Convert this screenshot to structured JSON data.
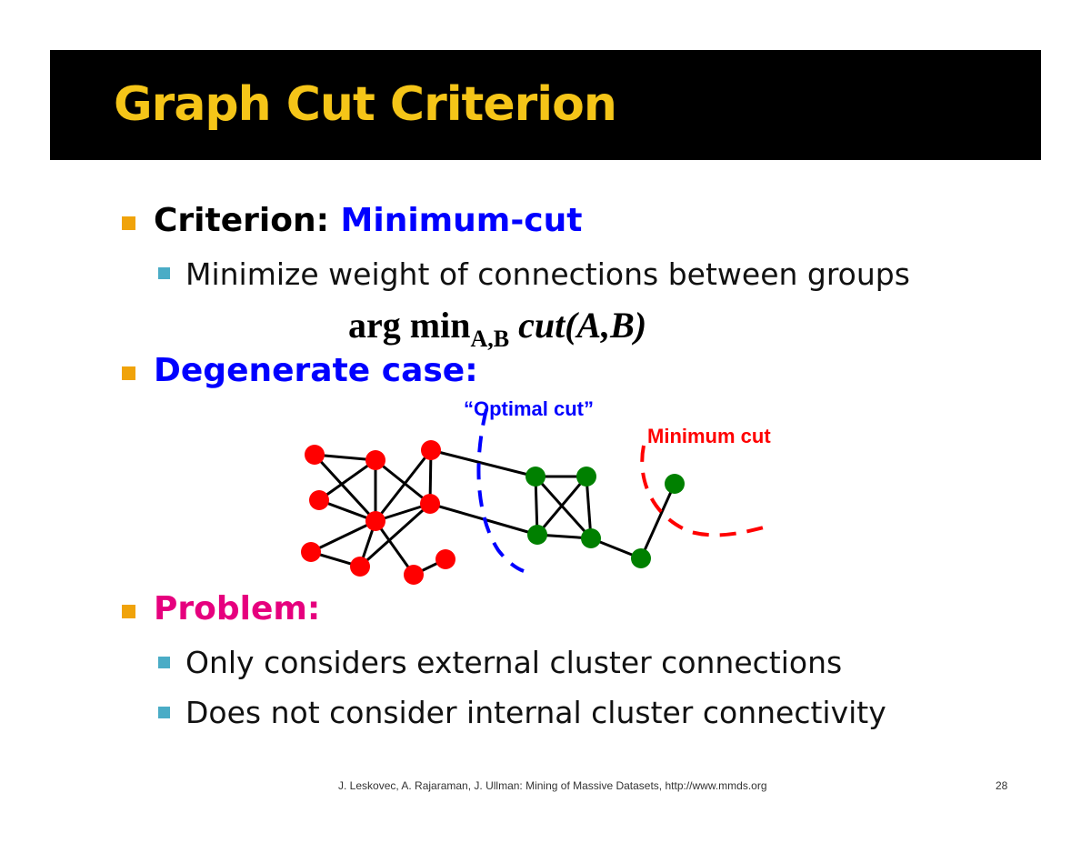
{
  "slide": {
    "title": "Graph Cut Criterion",
    "bullets": {
      "criterion_label": "Criterion: ",
      "criterion_value": "Minimum-cut",
      "criterion_sub": "Minimize weight of connections between groups",
      "formula_main": "arg min",
      "formula_sub": "A,B",
      "formula_expr": "cut(A,B)",
      "degenerate": "Degenerate case:",
      "problem": "Problem:",
      "problem_sub1": "Only considers external cluster connections",
      "problem_sub2": "Does not consider internal cluster connectivity"
    },
    "diagram": {
      "optimal_cut_label": "“Optimal cut”",
      "minimum_cut_label": "Minimum cut"
    },
    "footer": "J. Leskovec, A. Rajaraman, J. Ullman: Mining of Massive Datasets, http://www.mmds.org",
    "page_number": "28"
  },
  "colors": {
    "title": "#f5c518",
    "blue": "#0000ff",
    "problem": "#e6007e",
    "red_node": "#ff0000",
    "green_node": "#008000"
  }
}
